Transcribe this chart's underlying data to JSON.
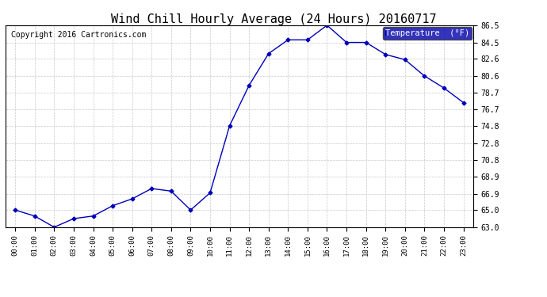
{
  "title": "Wind Chill Hourly Average (24 Hours) 20160717",
  "copyright": "Copyright 2016 Cartronics.com",
  "legend_label": "Temperature  (°F)",
  "hours": [
    "00:00",
    "01:00",
    "02:00",
    "03:00",
    "04:00",
    "05:00",
    "06:00",
    "07:00",
    "08:00",
    "09:00",
    "10:00",
    "11:00",
    "12:00",
    "13:00",
    "14:00",
    "15:00",
    "16:00",
    "17:00",
    "18:00",
    "19:00",
    "20:00",
    "21:00",
    "22:00",
    "23:00"
  ],
  "values": [
    65.0,
    64.3,
    63.0,
    64.0,
    64.3,
    65.5,
    66.3,
    67.5,
    67.2,
    65.0,
    67.0,
    74.8,
    79.5,
    83.2,
    84.8,
    84.8,
    86.5,
    84.5,
    84.5,
    83.1,
    82.5,
    80.6,
    79.2,
    77.5
  ],
  "ylim": [
    63.0,
    86.5
  ],
  "yticks": [
    63.0,
    65.0,
    66.9,
    68.9,
    70.8,
    72.8,
    74.8,
    76.7,
    78.7,
    80.6,
    82.6,
    84.5,
    86.5
  ],
  "line_color": "#0000bb",
  "marker": "D",
  "marker_size": 2.5,
  "bg_color": "#ffffff",
  "plot_bg_color": "#ffffff",
  "grid_color": "#bbbbbb",
  "title_fontsize": 11,
  "copyright_fontsize": 7,
  "legend_bg": "#0000aa",
  "legend_fg": "#ffffff"
}
